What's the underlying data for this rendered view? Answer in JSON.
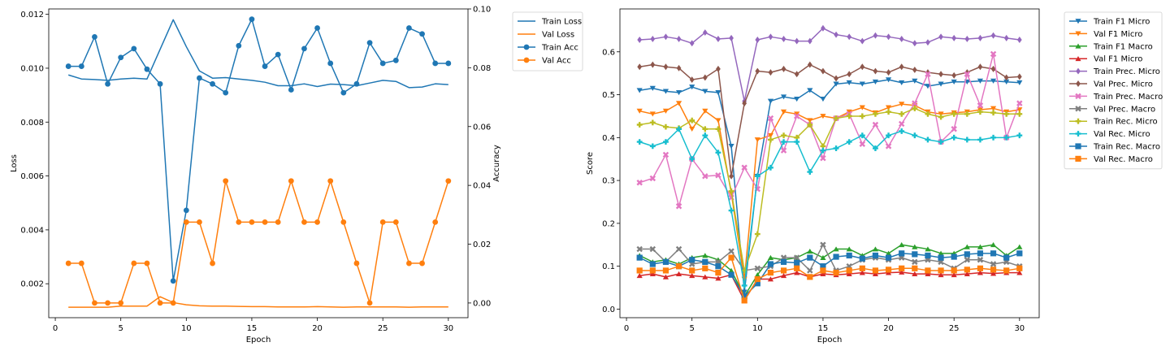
{
  "chart_data": [
    {
      "type": "line",
      "xlabel": "Epoch",
      "ylabel": "Loss",
      "y2label": "Accuracy",
      "xlim": [
        -0.5,
        31.5
      ],
      "ylim": [
        0.00074,
        0.0122
      ],
      "y2lim": [
        -0.005,
        0.1
      ],
      "xticks": [
        0,
        5,
        10,
        15,
        20,
        25,
        30
      ],
      "yticks": [
        0.002,
        0.004,
        0.006,
        0.008,
        0.01,
        0.012
      ],
      "ytick_labels": [
        "0.002",
        "0.004",
        "0.006",
        "0.008",
        "0.010",
        "0.012"
      ],
      "y2ticks": [
        0,
        0.02,
        0.04,
        0.06,
        0.08,
        0.1
      ],
      "y2tick_labels": [
        "0.00",
        "0.02",
        "0.04",
        "0.06",
        "0.08",
        "0.10"
      ],
      "legend_position": "outside right",
      "x": [
        1,
        2,
        3,
        4,
        5,
        6,
        7,
        8,
        9,
        10,
        11,
        12,
        13,
        14,
        15,
        16,
        17,
        18,
        19,
        20,
        21,
        22,
        23,
        24,
        25,
        26,
        27,
        28,
        29,
        30
      ],
      "series": [
        {
          "name": "Train Loss",
          "axis": "left",
          "color": "#1f77b4",
          "marker": "none",
          "values": [
            0.00975,
            0.0096,
            0.00958,
            0.00955,
            0.0096,
            0.00963,
            0.0096,
            0.0107,
            0.0118,
            0.0108,
            0.0099,
            0.00963,
            0.00965,
            0.0096,
            0.00955,
            0.00948,
            0.00935,
            0.00935,
            0.00942,
            0.00932,
            0.00941,
            0.00939,
            0.00935,
            0.00945,
            0.00955,
            0.00951,
            0.00928,
            0.0093,
            0.00942,
            0.00939
          ]
        },
        {
          "name": "Val Loss",
          "axis": "left",
          "color": "#ff7f0e",
          "marker": "none",
          "values": [
            0.00113,
            0.00113,
            0.00113,
            0.00113,
            0.00117,
            0.00117,
            0.00117,
            0.00152,
            0.0013,
            0.00122,
            0.00118,
            0.00117,
            0.00117,
            0.00116,
            0.00115,
            0.00115,
            0.00114,
            0.00114,
            0.00114,
            0.00115,
            0.00114,
            0.00113,
            0.00114,
            0.00114,
            0.00114,
            0.00114,
            0.00113,
            0.00114,
            0.00114,
            0.00114
          ]
        },
        {
          "name": "Train Acc",
          "axis": "right",
          "color": "#1f77b4",
          "marker": "circle",
          "values": [
            0.0805,
            0.0805,
            0.0905,
            0.0745,
            0.0835,
            0.0865,
            0.0795,
            0.0745,
            0.0075,
            0.0315,
            0.0765,
            0.0745,
            0.0715,
            0.0875,
            0.0965,
            0.0805,
            0.0845,
            0.0725,
            0.0865,
            0.0935,
            0.0815,
            0.0715,
            0.0745,
            0.0885,
            0.0815,
            0.0825,
            0.0935,
            0.0915,
            0.0815,
            0.0815
          ]
        },
        {
          "name": "Val Acc",
          "axis": "right",
          "color": "#ff7f0e",
          "marker": "circle",
          "values": [
            0.0135,
            0.0135,
            0.0,
            0.0,
            0.0,
            0.0135,
            0.0135,
            0.0,
            0.0,
            0.0275,
            0.0275,
            0.0135,
            0.0415,
            0.0275,
            0.0275,
            0.0275,
            0.0275,
            0.0415,
            0.0275,
            0.0275,
            0.0415,
            0.0275,
            0.0135,
            0.0,
            0.0275,
            0.0275,
            0.0135,
            0.0135,
            0.0275,
            0.0415
          ]
        }
      ]
    },
    {
      "type": "line",
      "xlabel": "Epoch",
      "ylabel": "Score",
      "xlim": [
        -0.5,
        31.5
      ],
      "ylim": [
        -0.02,
        0.7
      ],
      "xticks": [
        0,
        5,
        10,
        15,
        20,
        25,
        30
      ],
      "yticks": [
        0.0,
        0.1,
        0.2,
        0.3,
        0.4,
        0.5,
        0.6
      ],
      "ytick_labels": [
        "0.0",
        "0.1",
        "0.2",
        "0.3",
        "0.4",
        "0.5",
        "0.6"
      ],
      "legend_position": "outside right",
      "x": [
        1,
        2,
        3,
        4,
        5,
        6,
        7,
        8,
        9,
        10,
        11,
        12,
        13,
        14,
        15,
        16,
        17,
        18,
        19,
        20,
        21,
        22,
        23,
        24,
        25,
        26,
        27,
        28,
        29,
        30
      ],
      "series": [
        {
          "name": "Train F1 Micro",
          "color": "#1f77b4",
          "marker": "tri_down",
          "values": [
            0.51,
            0.515,
            0.508,
            0.505,
            0.518,
            0.508,
            0.505,
            0.38,
            0.04,
            0.31,
            0.485,
            0.495,
            0.49,
            0.51,
            0.49,
            0.525,
            0.528,
            0.525,
            0.53,
            0.535,
            0.528,
            0.532,
            0.52,
            0.525,
            0.53,
            0.53,
            0.532,
            0.532,
            0.53,
            0.528
          ]
        },
        {
          "name": "Val F1 Micro",
          "color": "#ff7f0e",
          "marker": "tri_down",
          "values": [
            0.462,
            0.455,
            0.462,
            0.48,
            0.42,
            0.462,
            0.44,
            0.27,
            0.07,
            0.395,
            0.405,
            0.46,
            0.455,
            0.44,
            0.45,
            0.445,
            0.46,
            0.47,
            0.458,
            0.47,
            0.478,
            0.475,
            0.46,
            0.455,
            0.458,
            0.46,
            0.465,
            0.468,
            0.46,
            0.465
          ]
        },
        {
          "name": "Train F1 Macro",
          "color": "#2ca02c",
          "marker": "tri_up",
          "values": [
            0.125,
            0.11,
            0.115,
            0.105,
            0.12,
            0.125,
            0.115,
            0.09,
            0.03,
            0.08,
            0.12,
            0.115,
            0.12,
            0.135,
            0.12,
            0.14,
            0.14,
            0.125,
            0.14,
            0.13,
            0.15,
            0.145,
            0.14,
            0.13,
            0.13,
            0.145,
            0.145,
            0.15,
            0.125,
            0.145
          ]
        },
        {
          "name": "Val F1 Micro",
          "color": "#d62728",
          "marker": "tri_up",
          "values": [
            0.078,
            0.082,
            0.075,
            0.082,
            0.078,
            0.075,
            0.072,
            0.08,
            0.02,
            0.07,
            0.07,
            0.078,
            0.085,
            0.075,
            0.082,
            0.08,
            0.082,
            0.085,
            0.082,
            0.085,
            0.086,
            0.082,
            0.082,
            0.08,
            0.08,
            0.082,
            0.085,
            0.083,
            0.085,
            0.085
          ]
        },
        {
          "name": "Train Prec. Micro",
          "color": "#9467bd",
          "marker": "diamond",
          "values": [
            0.628,
            0.63,
            0.635,
            0.63,
            0.62,
            0.645,
            0.63,
            0.632,
            0.485,
            0.628,
            0.635,
            0.63,
            0.625,
            0.625,
            0.655,
            0.64,
            0.635,
            0.625,
            0.638,
            0.635,
            0.63,
            0.62,
            0.622,
            0.635,
            0.632,
            0.63,
            0.632,
            0.638,
            0.632,
            0.628
          ]
        },
        {
          "name": "Val Prec. Micro",
          "color": "#8c564b",
          "marker": "diamond",
          "values": [
            0.565,
            0.57,
            0.565,
            0.562,
            0.535,
            0.54,
            0.56,
            0.31,
            0.48,
            0.555,
            0.552,
            0.56,
            0.548,
            0.57,
            0.555,
            0.538,
            0.548,
            0.565,
            0.555,
            0.552,
            0.565,
            0.558,
            0.552,
            0.548,
            0.545,
            0.552,
            0.565,
            0.56,
            0.54,
            0.542
          ]
        },
        {
          "name": "Train Prec. Macro",
          "color": "#e377c2",
          "marker": "x",
          "values": [
            0.295,
            0.305,
            0.36,
            0.24,
            0.35,
            0.31,
            0.312,
            0.26,
            0.33,
            0.28,
            0.445,
            0.37,
            0.45,
            0.43,
            0.352,
            0.445,
            0.455,
            0.385,
            0.43,
            0.38,
            0.432,
            0.48,
            0.548,
            0.39,
            0.42,
            0.548,
            0.475,
            0.595,
            0.4,
            0.48
          ]
        },
        {
          "name": "Val Prec. Macro",
          "color": "#7f7f7f",
          "marker": "x",
          "values": [
            0.14,
            0.14,
            0.11,
            0.14,
            0.105,
            0.11,
            0.11,
            0.135,
            0.09,
            0.095,
            0.1,
            0.12,
            0.12,
            0.09,
            0.15,
            0.09,
            0.1,
            0.115,
            0.12,
            0.115,
            0.12,
            0.11,
            0.115,
            0.11,
            0.095,
            0.115,
            0.115,
            0.105,
            0.11,
            0.1
          ]
        },
        {
          "name": "Train Rec. Micro",
          "color": "#bcbd22",
          "marker": "plus",
          "values": [
            0.43,
            0.435,
            0.425,
            0.422,
            0.44,
            0.42,
            0.42,
            0.275,
            0.09,
            0.175,
            0.395,
            0.405,
            0.4,
            0.43,
            0.38,
            0.445,
            0.45,
            0.45,
            0.455,
            0.46,
            0.455,
            0.468,
            0.455,
            0.448,
            0.455,
            0.455,
            0.46,
            0.458,
            0.455,
            0.455
          ]
        },
        {
          "name": "Val Rec. Micro",
          "color": "#17becf",
          "marker": "plus",
          "values": [
            0.39,
            0.38,
            0.39,
            0.42,
            0.35,
            0.405,
            0.365,
            0.23,
            0.055,
            0.31,
            0.33,
            0.39,
            0.39,
            0.32,
            0.37,
            0.375,
            0.39,
            0.405,
            0.375,
            0.405,
            0.415,
            0.405,
            0.395,
            0.39,
            0.4,
            0.395,
            0.395,
            0.4,
            0.4,
            0.405
          ]
        },
        {
          "name": "Train Rec. Macro",
          "color": "#1f77b4",
          "marker": "square",
          "values": [
            0.12,
            0.105,
            0.11,
            0.1,
            0.115,
            0.11,
            0.1,
            0.08,
            0.03,
            0.06,
            0.105,
            0.11,
            0.108,
            0.12,
            0.1,
            0.122,
            0.125,
            0.118,
            0.125,
            0.12,
            0.13,
            0.128,
            0.125,
            0.12,
            0.122,
            0.128,
            0.13,
            0.13,
            0.12,
            0.13
          ]
        },
        {
          "name": "Val Rec. Macro",
          "color": "#ff7f0e",
          "marker": "square",
          "values": [
            0.09,
            0.09,
            0.09,
            0.1,
            0.09,
            0.095,
            0.085,
            0.12,
            0.02,
            0.07,
            0.085,
            0.09,
            0.095,
            0.075,
            0.09,
            0.085,
            0.09,
            0.095,
            0.09,
            0.092,
            0.095,
            0.095,
            0.09,
            0.09,
            0.09,
            0.092,
            0.095,
            0.092,
            0.09,
            0.095
          ]
        }
      ]
    }
  ]
}
